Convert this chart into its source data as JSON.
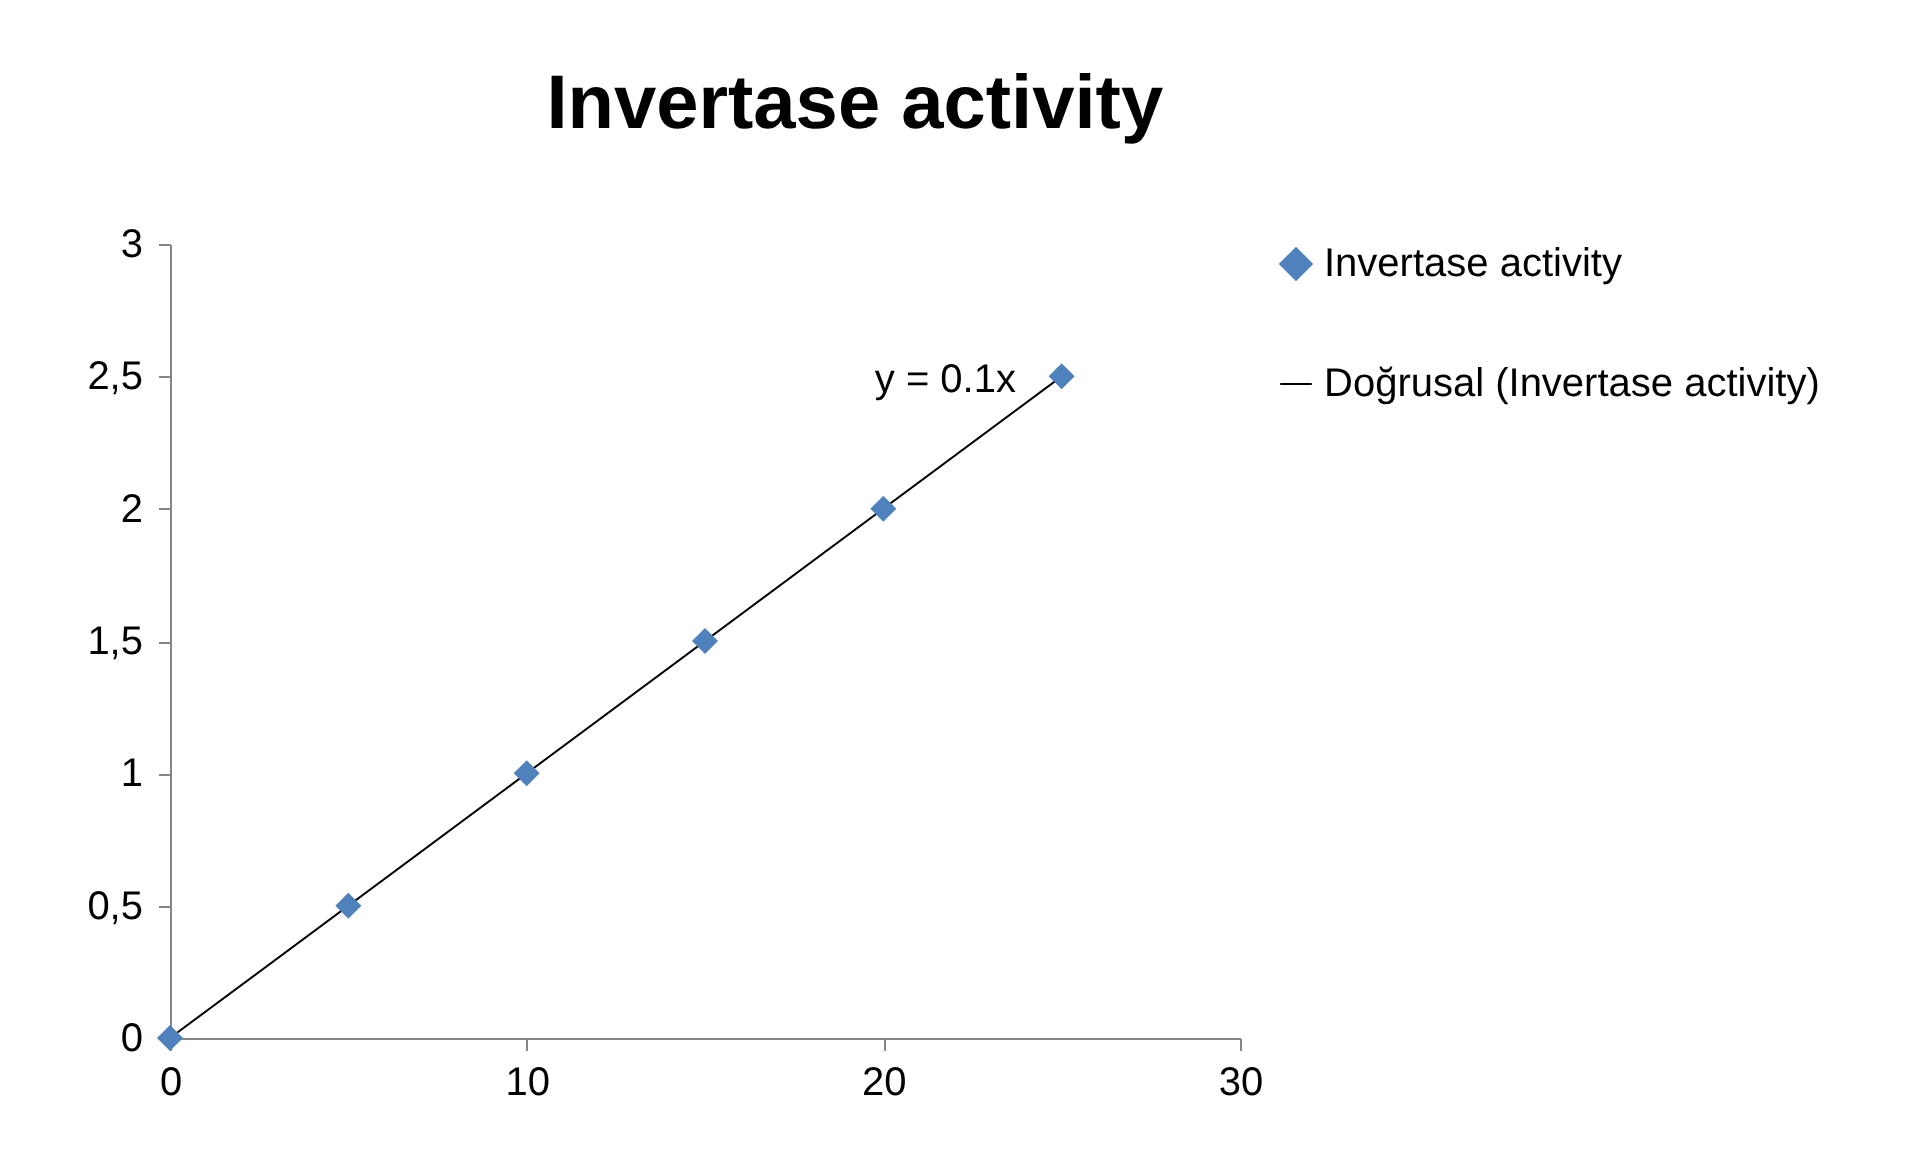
{
  "chart_data": {
    "type": "scatter",
    "title": "Invertase  activity",
    "x": [
      0,
      5,
      10,
      15,
      20,
      25
    ],
    "series": [
      {
        "name": "Invertase  activity",
        "color": "#4f81bd",
        "values": [
          0,
          0.5,
          1,
          1.5,
          2,
          2.5
        ]
      },
      {
        "name": "Doğrusal (Invertase activity)",
        "type": "line",
        "marker": "none",
        "color": "#000000",
        "x": [
          0,
          25
        ],
        "values": [
          0,
          2.5
        ]
      }
    ],
    "annotations": [
      "y = 0.1x"
    ],
    "xlim": [
      0,
      30
    ],
    "xticks": [
      0,
      10,
      20,
      30
    ],
    "ylim": [
      0,
      3
    ],
    "yticks": [
      0,
      {
        "value": 0.5,
        "label": "0,5"
      },
      1,
      {
        "value": 1.5,
        "label": "1,5"
      },
      2,
      {
        "value": 2.5,
        "label": "2,5"
      },
      3
    ],
    "marker": "diamond",
    "legend": "right",
    "grid": false
  }
}
